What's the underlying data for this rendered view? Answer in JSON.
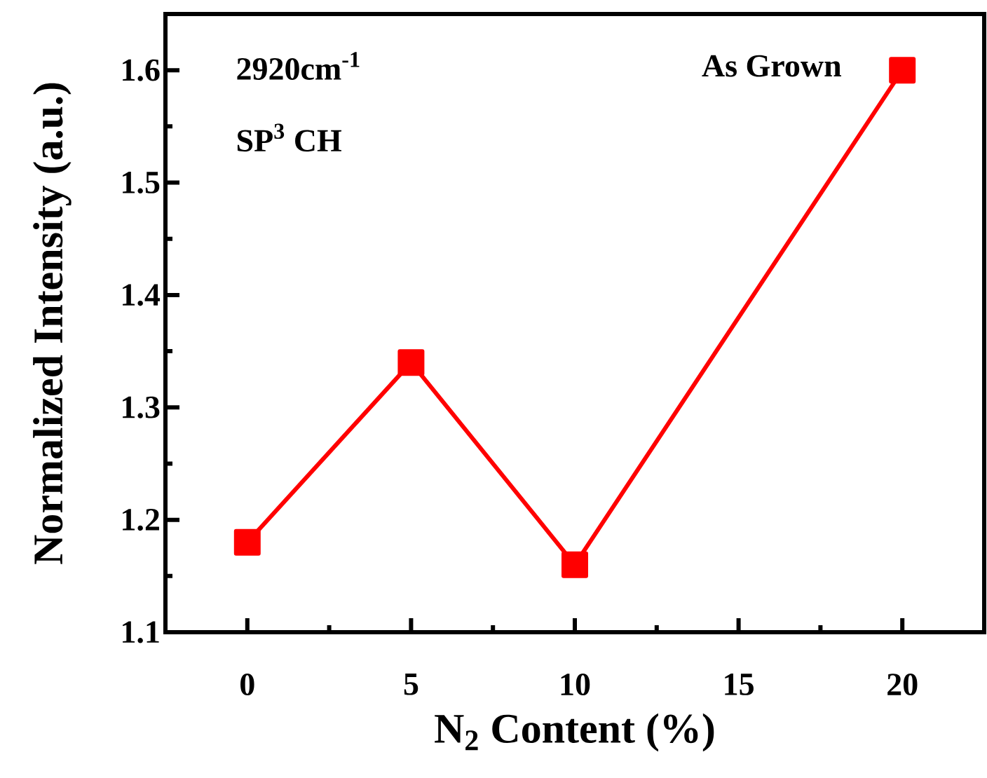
{
  "chart_data": {
    "type": "line",
    "xlabel": "N$_{2}$ Content (%)",
    "ylabel": "Normalized Intensity (a.u.)",
    "x": [
      0,
      5,
      10,
      20
    ],
    "series": [
      {
        "color": "#ff0000",
        "values": [
          1.18,
          1.34,
          1.16,
          1.6
        ]
      }
    ],
    "xlim": [
      -2.5,
      22.5
    ],
    "ylim": [
      1.1,
      1.65
    ],
    "xticks": [
      0,
      5,
      10,
      15,
      20
    ],
    "yticks": [
      1.1,
      1.2,
      1.3,
      1.4,
      1.5,
      1.6
    ],
    "marker": "square",
    "line_style": "solid",
    "annotations": [
      "2920cm$^{-1}$",
      "SP$^{3}$ CH",
      "As Grown"
    ]
  }
}
